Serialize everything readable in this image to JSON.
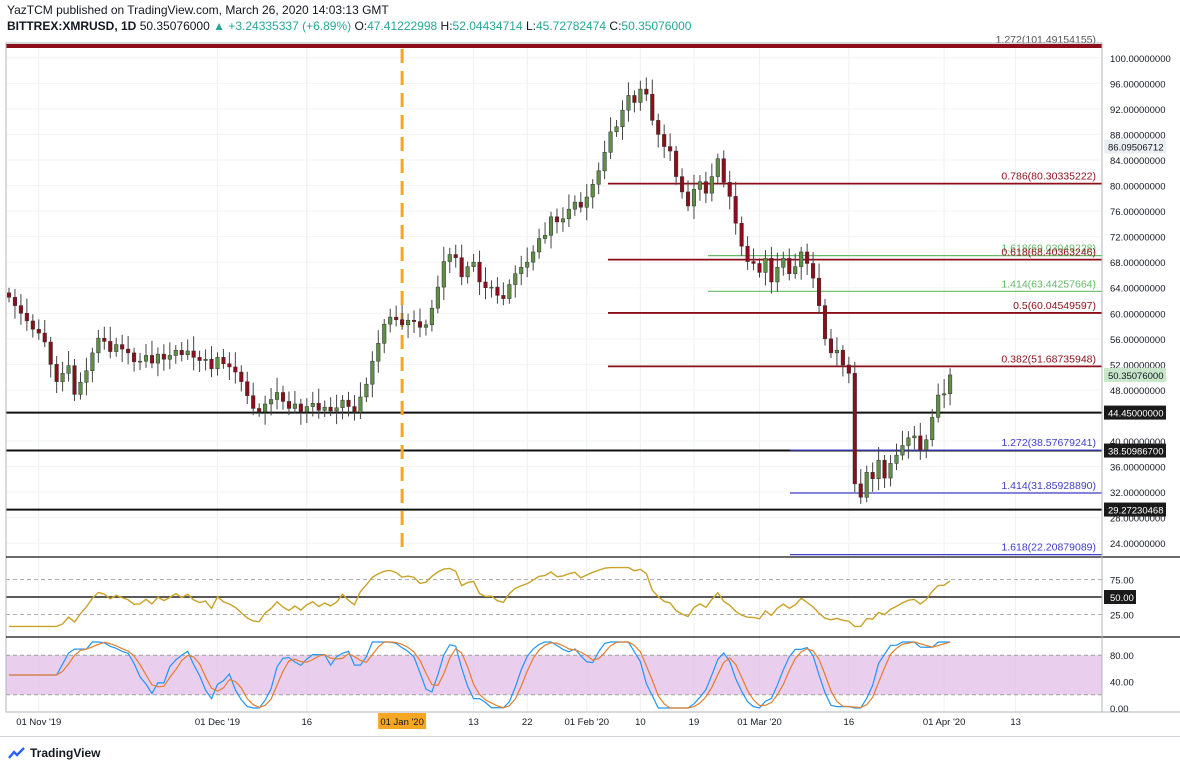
{
  "header": {
    "publisher": "YazTCM published on TradingView.com, March 26, 2020 14:03:13 GMT",
    "symbol": "BITTREX:XMRUSD, 1D",
    "last": "50.35076000",
    "change": "+3.24335337 (+6.89%)",
    "o_label": "O:",
    "o": "47.41222998",
    "h_label": "H:",
    "h": "52.04434714",
    "l_label": "L:",
    "l": "45.72782474",
    "c_label": "C:",
    "c": "50.35076000"
  },
  "brand": {
    "name": "TradingView"
  },
  "colors": {
    "up": "#5f8f45",
    "down": "#8b0e1a",
    "fib_red": "#8b0e1a",
    "fib_green": "#66bb6a",
    "fib_blue": "#3f3fc9",
    "rsi": "#c9a227",
    "stoch_k": "#2196f3",
    "stoch_d": "#e57e2e",
    "stoch_band": "#e1bee7",
    "dashed_vline": "#f5a623"
  },
  "chart_data": [
    {
      "type": "candlestick",
      "name": "",
      "title": "",
      "ylim": [
        22,
        102
      ],
      "y_ticks": [
        "100.00000000",
        "96.00000000",
        "92.00000000",
        "88.00000000",
        "84.00000000",
        "80.00000000",
        "76.00000000",
        "72.00000000",
        "68.00000000",
        "64.00000000",
        "60.00000000",
        "56.00000000",
        "52.00000000",
        "48.00000000",
        "40.00000000",
        "36.00000000",
        "32.00000000",
        "28.00000000",
        "24.00000000"
      ],
      "x_ticks": [
        "01 Nov '19",
        "01 Dec '19",
        "16",
        "01 Jan '20",
        "13",
        "22",
        "01 Feb '20",
        "10",
        "19",
        "01 Mar '20",
        "16",
        "01 Apr '20",
        "13"
      ],
      "price_tags": [
        {
          "label": "86.09506712",
          "value": 86.095,
          "style": "grey"
        },
        {
          "label": "50.35076000",
          "value": 50.35,
          "style": "green"
        },
        {
          "label": "44.45000000",
          "value": 44.45,
          "style": "black"
        },
        {
          "label": "38.50986700",
          "value": 38.51,
          "style": "black"
        },
        {
          "label": "29.27230468",
          "value": 29.27,
          "style": "black"
        }
      ],
      "levels": [
        {
          "label": "1.272(101.49154155)",
          "value": 101.49,
          "color": "red",
          "thick": true
        },
        {
          "label": "0.786(80.30335222)",
          "value": 80.3,
          "color": "red"
        },
        {
          "label": "1.618(69.03049228)",
          "value": 69.03,
          "color": "green"
        },
        {
          "label": "0.618(68.40363246)",
          "value": 68.4,
          "color": "red"
        },
        {
          "label": "1.414(63.44257664)",
          "value": 63.44,
          "color": "green"
        },
        {
          "label": "0.5(60.04549597)",
          "value": 60.05,
          "color": "red"
        },
        {
          "label": "0.382(51.68735948)",
          "value": 51.69,
          "color": "red"
        },
        {
          "label": "1.272(38.57679241)",
          "value": 38.58,
          "color": "blue"
        },
        {
          "label": "1.414(31.85928890)",
          "value": 31.86,
          "color": "blue"
        },
        {
          "label": "1.618(22.20879089)",
          "value": 22.21,
          "color": "blue"
        }
      ],
      "horizontal_lines": [
        44.45,
        38.51,
        29.27
      ],
      "close": [
        62.5,
        61.2,
        60.0,
        58.8,
        57.5,
        56.9,
        55.5,
        52.0,
        49.3,
        50.6,
        51.8,
        47.3,
        49.2,
        51.0,
        53.8,
        56.1,
        55.6,
        54.0,
        55.1,
        54.4,
        53.8,
        52.4,
        52.5,
        53.4,
        52.2,
        53.6,
        52.8,
        53.4,
        54.2,
        53.5,
        54.1,
        53.1,
        52.6,
        52.8,
        51.3,
        53.1,
        52.1,
        51.6,
        50.8,
        49.3,
        47.1,
        45.1,
        44.6,
        45.8,
        46.5,
        47.6,
        46.2,
        45.1,
        45.8,
        44.6,
        45.4,
        45.9,
        44.8,
        45.3,
        44.7,
        45.2,
        46.4,
        45.4,
        44.5,
        46.9,
        48.9,
        52.5,
        55.3,
        58.3,
        59.4,
        59.0,
        58.2,
        58.9,
        58.7,
        57.8,
        58.2,
        60.8,
        64.1,
        68.1,
        69.2,
        68.7,
        65.7,
        67.3,
        68.0,
        64.9,
        64.0,
        64.1,
        62.8,
        62.3,
        64.5,
        66.2,
        67.2,
        68.0,
        69.6,
        71.7,
        72.2,
        75.1,
        74.3,
        74.8,
        76.3,
        77.4,
        76.6,
        78.2,
        80.2,
        82.3,
        85.2,
        88.4,
        89.2,
        91.8,
        94.1,
        93.0,
        95.1,
        94.3,
        90.2,
        88.0,
        86.1,
        85.4,
        81.4,
        79.0,
        76.8,
        79.4,
        80.6,
        78.8,
        81.4,
        84.2,
        80.5,
        78.3,
        74.1,
        70.5,
        68.1,
        67.8,
        66.4,
        68.6,
        64.9,
        67.2,
        68.6,
        66.2,
        67.3,
        69.6,
        67.8,
        65.5,
        61.2,
        56.0,
        53.8,
        54.2,
        51.9,
        50.6,
        33.3,
        31.2,
        35.1,
        34.1,
        37.0,
        34.2,
        36.5,
        37.8,
        39.3,
        40.5,
        40.8,
        38.6,
        40.2,
        43.7,
        47.2,
        47.4,
        50.35
      ],
      "rsi": {
        "label": "RSI",
        "ticks": [
          "75.00",
          "50.00",
          "25.00"
        ],
        "marker": "50.00"
      },
      "stoch_rsi": {
        "label": "Stoch RSI",
        "ticks": [
          "80.00",
          "40.00",
          "0.00"
        ]
      }
    }
  ]
}
